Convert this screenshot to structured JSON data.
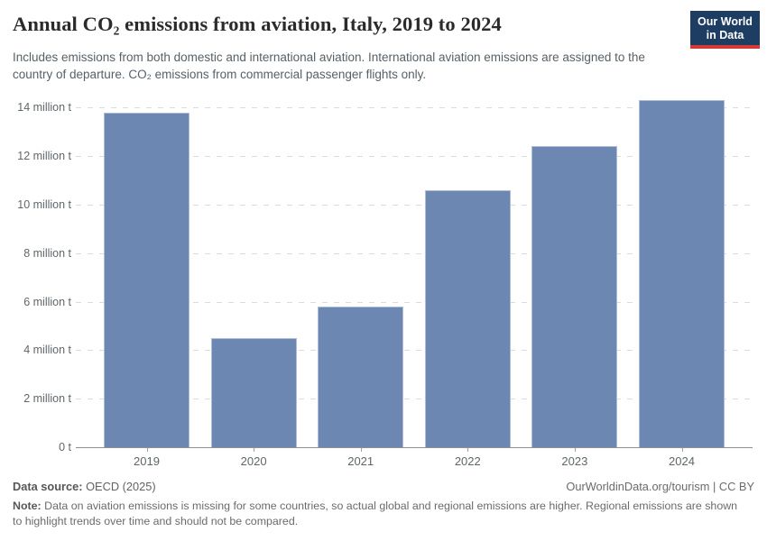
{
  "header": {
    "title": "Annual CO₂ emissions from aviation, Italy, 2019 to 2024",
    "subtitle": "Includes emissions from both domestic and international aviation. International aviation emissions are assigned to the country of departure. CO₂ emissions from commercial passenger flights only.",
    "logo": {
      "line1": "Our World",
      "line2": "in Data"
    }
  },
  "chart_data": {
    "type": "bar",
    "title": "Annual CO₂ emissions from aviation, Italy, 2019 to 2024",
    "categories": [
      "2019",
      "2020",
      "2021",
      "2022",
      "2023",
      "2024"
    ],
    "values": [
      13.8,
      4.5,
      5.8,
      10.6,
      12.4,
      14.3
    ],
    "unit": "million t",
    "xlabel": "",
    "ylabel": "",
    "ylim": [
      0,
      14.35
    ],
    "yticks": [
      0,
      2,
      4,
      6,
      8,
      10,
      12,
      14
    ],
    "ytick_labels": [
      "0 t",
      "2 million t",
      "4 million t",
      "6 million t",
      "8 million t",
      "10 million t",
      "12 million t",
      "14 million t"
    ],
    "grid": "horizontal-dashed",
    "legend": "none"
  },
  "footer": {
    "source_label": "Data source:",
    "source_value": "OECD (2025)",
    "attribution": "OurWorldinData.org/tourism | CC BY",
    "note_label": "Note:",
    "note_text": "Data on aviation emissions is missing for some countries, so actual global and regional emissions are higher. Regional emissions are shown to highlight trends over time and should not be compared."
  },
  "colors": {
    "bar": "#6c87b2",
    "logo_background": "#1d3d63",
    "logo_underline": "#d73a36",
    "gridline": "#dcdcdc",
    "axis_line": "#8f8f8f",
    "title_text": "#2b2b2b",
    "subtitle_text": "#586067"
  }
}
